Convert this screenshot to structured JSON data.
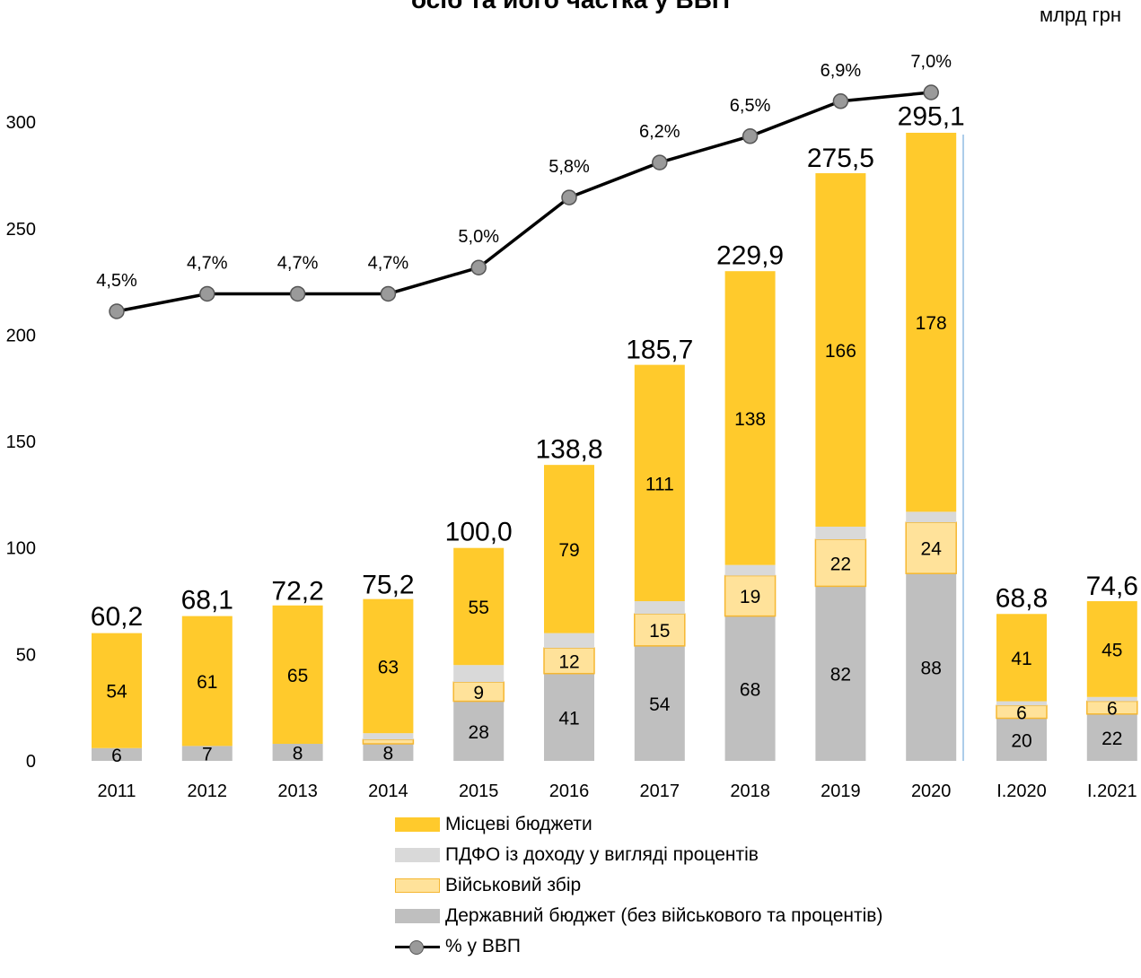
{
  "chart_data": {
    "type": "bar",
    "title": "осіб та його частка у ВВП",
    "unit_label": "млрд грн",
    "categories": [
      "2011",
      "2012",
      "2013",
      "2014",
      "2015",
      "2016",
      "2017",
      "2018",
      "2019",
      "2020",
      "І.2020",
      "І.2021"
    ],
    "ylim": [
      0,
      310
    ],
    "yticks": [
      0,
      50,
      100,
      150,
      200,
      250,
      300
    ],
    "series": [
      {
        "name": "Державний бюджет (без військового та процентів)",
        "color": "#bfbfbf",
        "values": [
          6,
          7,
          8,
          8,
          28,
          41,
          54,
          68,
          82,
          88,
          20,
          22
        ],
        "labels": [
          "6",
          "7",
          "8",
          "8",
          "28",
          "41",
          "54",
          "68",
          "82",
          "88",
          "20",
          "22"
        ]
      },
      {
        "name": "Військовий збір",
        "color": "#ffe29a",
        "values": [
          0,
          0,
          0,
          2,
          9,
          12,
          15,
          19,
          22,
          24,
          6,
          6
        ],
        "labels": [
          "",
          "",
          "",
          "",
          "9",
          "12",
          "15",
          "19",
          "22",
          "24",
          "6",
          "6"
        ]
      },
      {
        "name": "ПДФО із доходу у вигляді процентів",
        "color": "#d9d9d9",
        "values": [
          0,
          0,
          0,
          3,
          8,
          7,
          6,
          5,
          6,
          5,
          2,
          2
        ],
        "labels": [
          "",
          "",
          "",
          "",
          "",
          "",
          "",
          "",
          "",
          "",
          "",
          ""
        ]
      },
      {
        "name": "Місцеві бюджети",
        "color": "#ffca2c",
        "values": [
          54,
          61,
          65,
          63,
          55,
          79,
          111,
          138,
          166,
          178,
          41,
          45
        ],
        "labels": [
          "54",
          "61",
          "65",
          "63",
          "55",
          "79",
          "111",
          "138",
          "166",
          "178",
          "41",
          "45"
        ]
      }
    ],
    "totals": [
      "60,2",
      "68,1",
      "72,2",
      "75,2",
      "100,0",
      "138,8",
      "185,7",
      "229,9",
      "275,5",
      "295,1",
      "68,8",
      "74,6"
    ],
    "totals_values": [
      60.2,
      68.1,
      72.2,
      75.2,
      100.0,
      138.8,
      185.7,
      229.9,
      275.5,
      295.1,
      68.8,
      74.6
    ],
    "line_series": {
      "name": "% у ВВП",
      "labels": [
        "4,5%",
        "4,7%",
        "4,7%",
        "4,7%",
        "5,0%",
        "5,8%",
        "6,2%",
        "6,5%",
        "6,9%",
        "7,0%"
      ],
      "values": [
        4.5,
        4.7,
        4.7,
        4.7,
        5.0,
        5.8,
        6.2,
        6.5,
        6.9,
        7.0
      ]
    },
    "legend": [
      {
        "name": "Місцеві бюджети",
        "color": "#ffca2c",
        "kind": "bar"
      },
      {
        "name": "ПДФО із доходу у вигляді процентів",
        "color": "#d9d9d9",
        "kind": "bar"
      },
      {
        "name": "Військовий збір",
        "color": "#ffe29a",
        "kind": "bar-outline"
      },
      {
        "name": "Державний бюджет (без військового та процентів)",
        "color": "#bfbfbf",
        "kind": "bar"
      },
      {
        "name": "% у ВВП",
        "color": "#000000",
        "kind": "line"
      }
    ],
    "legend_position": "bottom",
    "grid": false
  }
}
